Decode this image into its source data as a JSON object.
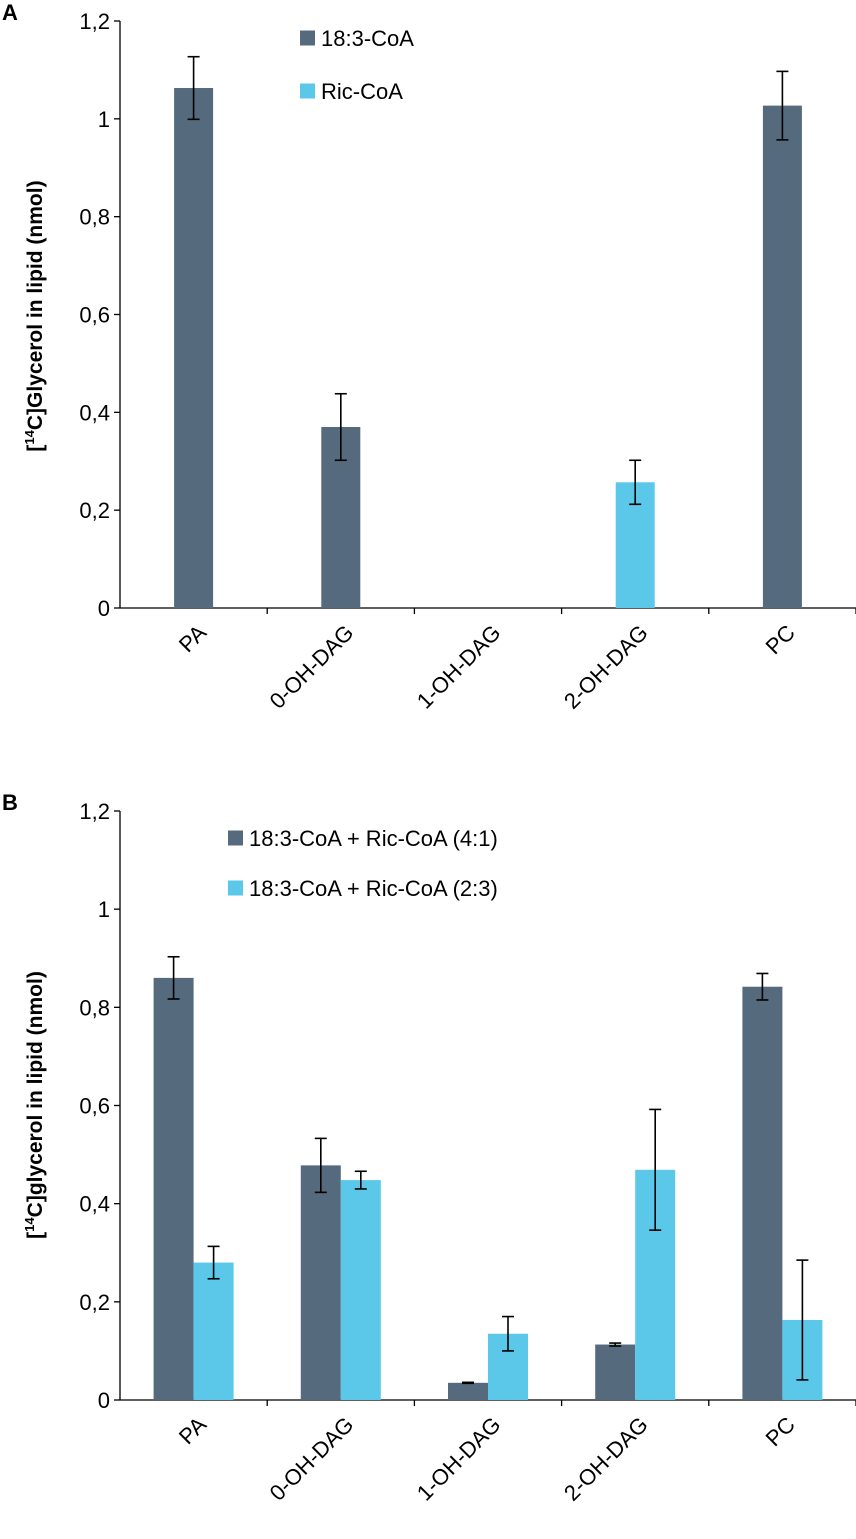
{
  "chart_data": [
    {
      "panel": "A",
      "type": "bar",
      "ylabel": {
        "pre": "[",
        "sup": "14",
        "post": "C]Glycerol in lipid (nmol)"
      },
      "ylim": [
        0,
        1.2
      ],
      "yticks": [
        "0",
        "0,2",
        "0,4",
        "0,6",
        "0,8",
        "1",
        "1,2"
      ],
      "categories": [
        "PA",
        "0-OH-DAG",
        "1-OH-DAG",
        "2-OH-DAG",
        "PC"
      ],
      "series": [
        {
          "name": "18:3-CoA",
          "color": "#566a7e",
          "values": [
            1.063,
            0.37,
            0,
            0,
            1.027
          ],
          "errors": [
            0.064,
            0.068,
            null,
            null,
            0.07
          ]
        },
        {
          "name": "Ric-CoA",
          "color": "#5bc8ea",
          "values": [
            0,
            0,
            0,
            0.257,
            0
          ],
          "errors": [
            null,
            null,
            null,
            0.045,
            null
          ]
        }
      ]
    },
    {
      "panel": "B",
      "type": "bar",
      "ylabel": {
        "pre": "[",
        "sup": "14",
        "post": "C]glycerol in lipid (nmol)"
      },
      "ylim": [
        0,
        1.2
      ],
      "yticks": [
        "0",
        "0,2",
        "0,4",
        "0,6",
        "0,8",
        "1",
        "1,2"
      ],
      "categories": [
        "PA",
        "0-OH-DAG",
        "1-OH-DAG",
        "2-OH-DAG",
        "PC"
      ],
      "series": [
        {
          "name": "18:3-CoA + Ric-CoA (4:1)",
          "color": "#566a7e",
          "values": [
            0.86,
            0.478,
            0.035,
            0.113,
            0.842
          ],
          "errors": [
            0.043,
            0.055,
            0.001,
            0.003,
            0.027
          ]
        },
        {
          "name": "18:3-CoA + Ric-CoA (2:3)",
          "color": "#5bc8ea",
          "values": [
            0.28,
            0.448,
            0.135,
            0.469,
            0.163
          ],
          "errors": [
            0.033,
            0.018,
            0.035,
            0.123,
            0.122
          ]
        }
      ]
    }
  ]
}
